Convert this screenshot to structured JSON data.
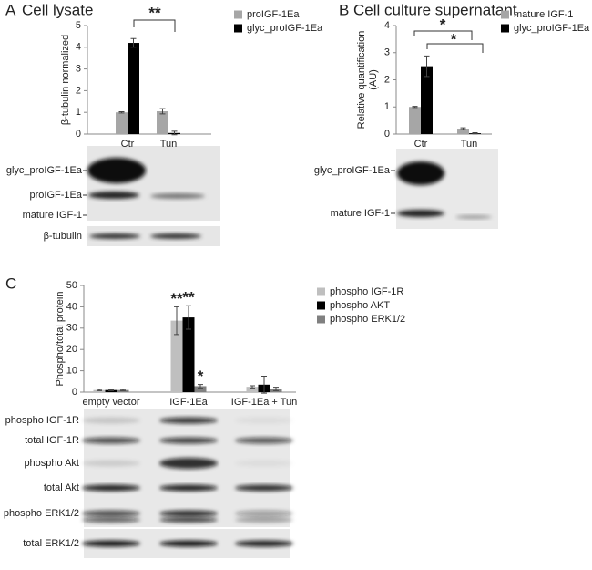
{
  "chart_data": [
    {
      "type": "bar",
      "panel": "A",
      "title": "Cell lysate",
      "y_label": "β-tubulin normalized",
      "categories": [
        "Ctr",
        "Tun"
      ],
      "ylim": [
        0,
        5
      ],
      "yticks": [
        0,
        1,
        2,
        3,
        4,
        5
      ],
      "series": [
        {
          "name": "proIGF-1Ea",
          "color": "#a6a6a6",
          "values": [
            1,
            1.05
          ],
          "errors": [
            0.03,
            0.12
          ]
        },
        {
          "name": "glyc_proIGF-1Ea",
          "color": "#000000",
          "values": [
            4.2,
            0.05
          ],
          "errors": [
            0.2,
            0.08
          ]
        }
      ],
      "annotations": [
        "**"
      ]
    },
    {
      "type": "bar",
      "panel": "B",
      "title": "Cell culture supernatant",
      "y_label": [
        "Relative quantification",
        "(AU)"
      ],
      "categories": [
        "Ctr",
        "Tun"
      ],
      "ylim": [
        0,
        4
      ],
      "yticks": [
        0,
        1,
        2,
        3,
        4
      ],
      "series": [
        {
          "name": "mature IGF-1",
          "color": "#a6a6a6",
          "values": [
            1,
            0.2
          ],
          "errors": [
            0.02,
            0.03
          ]
        },
        {
          "name": "glyc_proIGF-1Ea",
          "color": "#000000",
          "values": [
            2.5,
            0.03
          ],
          "errors": [
            0.38,
            0.02
          ]
        }
      ],
      "annotations": [
        "*",
        "*"
      ]
    },
    {
      "type": "bar",
      "panel": "C",
      "y_label": "Phospho/total protein",
      "categories": [
        "empty vector",
        "IGF-1Ea",
        "IGF-1Ea + Tun"
      ],
      "ylim": [
        0,
        50
      ],
      "yticks": [
        0,
        10,
        20,
        30,
        40,
        50
      ],
      "series": [
        {
          "name": "phospho IGF-1R",
          "color": "#bfbfbf",
          "values": [
            1,
            33.5,
            2.5
          ],
          "errors": [
            0.3,
            6.5,
            0.5
          ]
        },
        {
          "name": "phospho AKT",
          "color": "#000000",
          "values": [
            1,
            35,
            3.5
          ],
          "errors": [
            0.3,
            5.5,
            4
          ]
        },
        {
          "name": "phospho ERK1/2",
          "color": "#808080",
          "values": [
            1,
            2.8,
            1.5
          ],
          "errors": [
            0.3,
            0.8,
            0.8
          ]
        }
      ],
      "annotations": [
        "**",
        "**",
        "*"
      ]
    }
  ],
  "blot_a": {
    "labels": [
      "glyc_proIGF-1Ea",
      "proIGF-1Ea",
      "mature IGF-1",
      "β-tubulin"
    ]
  },
  "blot_b": {
    "labels": [
      "glyc_proIGF-1Ea",
      "mature IGF-1"
    ]
  },
  "blot_c": {
    "labels": [
      "phospho IGF-1R",
      "total IGF-1R",
      "phospho Akt",
      "total Akt",
      "phospho ERK1/2",
      "total ERK1/2"
    ]
  }
}
